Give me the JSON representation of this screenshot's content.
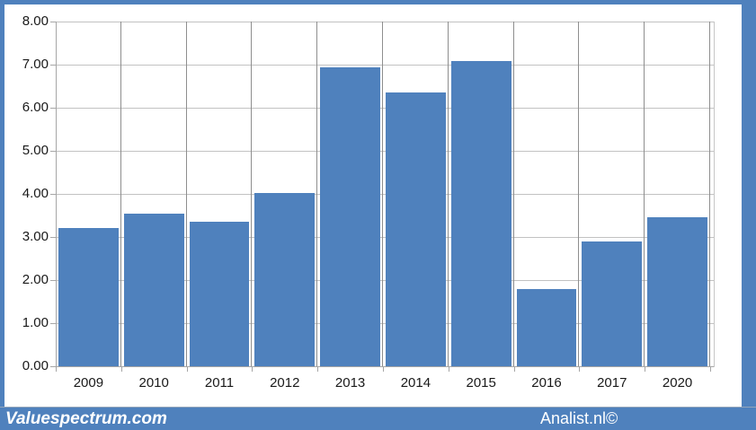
{
  "chart_data": {
    "type": "bar",
    "categories": [
      "2009",
      "2010",
      "2011",
      "2012",
      "2013",
      "2014",
      "2015",
      "2016",
      "2017",
      "2020"
    ],
    "values": [
      3.2,
      3.55,
      3.35,
      4.03,
      6.93,
      6.35,
      7.08,
      1.8,
      2.9,
      3.45
    ],
    "title": "",
    "xlabel": "",
    "ylabel": "",
    "ylim": [
      0,
      8
    ],
    "ytick_step": 1,
    "ytick_labels": [
      "0.00",
      "1.00",
      "2.00",
      "3.00",
      "4.00",
      "5.00",
      "6.00",
      "7.00",
      "8.00"
    ],
    "grid": "both",
    "legend": "none",
    "bar_color": "#4f81bd"
  },
  "footer": {
    "left_brand": "Valuespectrum.com",
    "right_brand": "Analist.nl©"
  },
  "colors": {
    "frame_blue": "#4f81bd",
    "bar_blue": "#4f81bd",
    "horizontal_gridline": "#c2c2c2",
    "vertical_gridline": "#8e8e8e",
    "axis_line": "#a6a6a6",
    "plot_border": "#c6c6c6",
    "tick_label_text": "#191919",
    "footer_text": "#ffffff"
  }
}
